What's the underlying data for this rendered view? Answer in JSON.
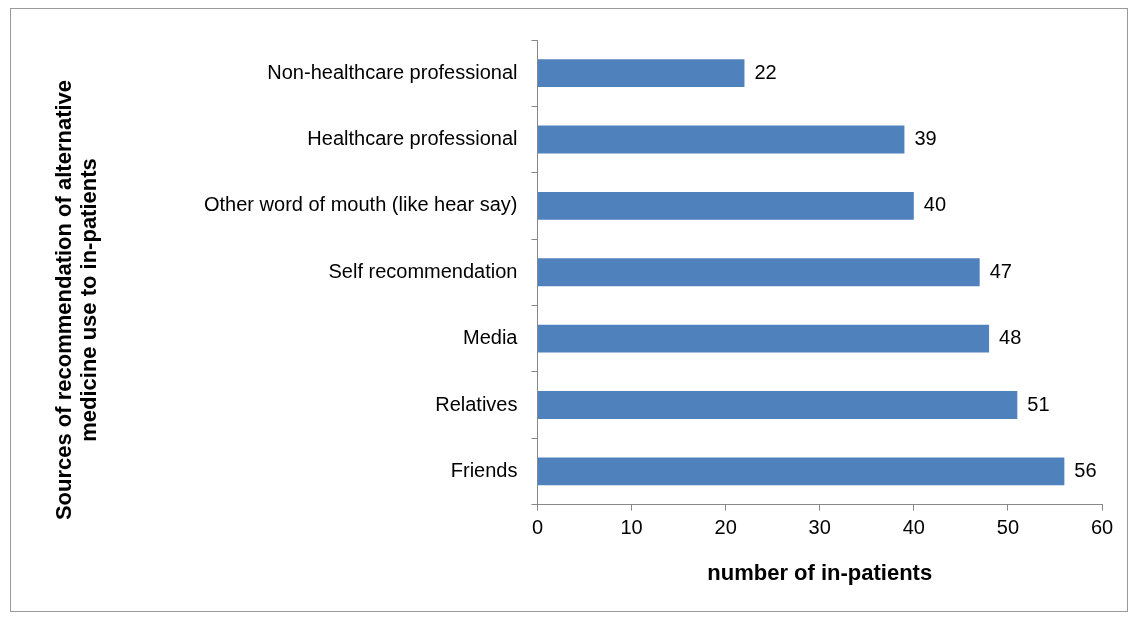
{
  "chart_data": {
    "type": "bar",
    "orientation": "horizontal",
    "ylabel": "Sources of recommendation of alternative medicine use to in-patients",
    "xlabel": "number of in-patients",
    "categories": [
      "Non-healthcare professional",
      "Healthcare professional",
      "Other word of mouth (like hear say)",
      "Self recommendation",
      "Media",
      "Relatives",
      "Friends"
    ],
    "values": [
      22,
      39,
      40,
      47,
      48,
      51,
      56
    ],
    "color": "#4f81bd",
    "xlim": [
      0,
      60
    ],
    "xticks": [
      0,
      10,
      20,
      30,
      40,
      50,
      60
    ],
    "grid": false,
    "legend": false,
    "data_labels": true
  }
}
